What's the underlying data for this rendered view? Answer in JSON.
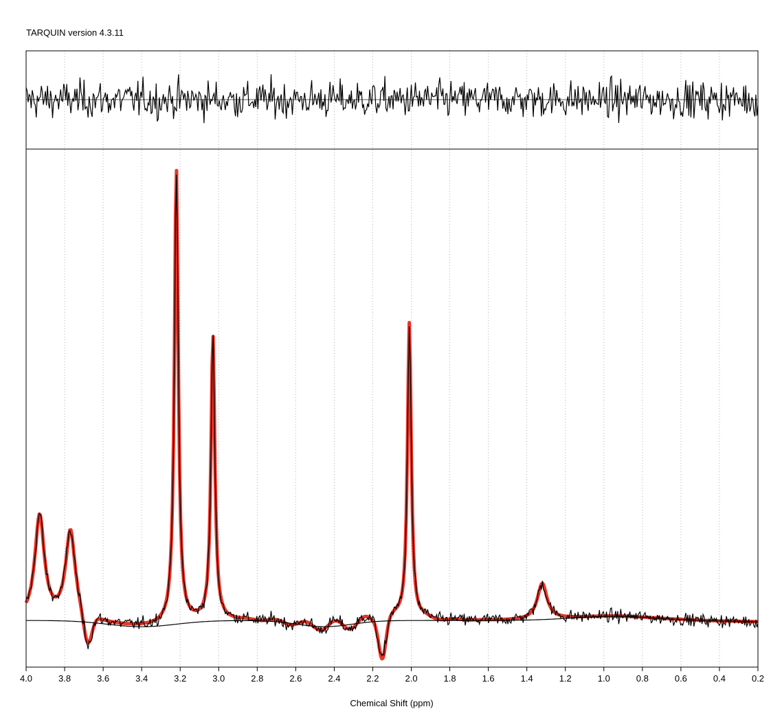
{
  "header": {
    "title": "TARQUIN version 4.3.11"
  },
  "chart_data": {
    "type": "line",
    "xlabel": "Chemical Shift (ppm)",
    "x_reversed": true,
    "xlim": [
      4.0,
      0.2
    ],
    "x_ticks": [
      "4.0",
      "3.8",
      "3.6",
      "3.4",
      "3.2",
      "3.0",
      "2.8",
      "2.6",
      "2.4",
      "2.2",
      "2.0",
      "1.8",
      "1.6",
      "1.4",
      "1.2",
      "1.0",
      "0.8",
      "0.6",
      "0.4",
      "0.2"
    ],
    "grid": "vertical dotted at each x tick",
    "panels": [
      "residual (top)",
      "spectrum with fit and baseline (bottom)"
    ],
    "series": [
      {
        "role": "data",
        "color": "#000000"
      },
      {
        "role": "fit",
        "color": "#e8362a"
      },
      {
        "role": "baseline",
        "color": "#000000"
      },
      {
        "role": "residual",
        "color": "#000000"
      }
    ],
    "peaks": [
      {
        "ppm": 3.93,
        "height": 0.2
      },
      {
        "ppm": 3.77,
        "height": 0.17
      },
      {
        "ppm": 3.22,
        "height": 0.88
      },
      {
        "ppm": 3.03,
        "height": 0.55
      },
      {
        "ppm": 2.01,
        "height": 0.58
      },
      {
        "ppm": 1.32,
        "height": 0.07
      }
    ],
    "ylim": [
      -0.09,
      0.91
    ]
  }
}
